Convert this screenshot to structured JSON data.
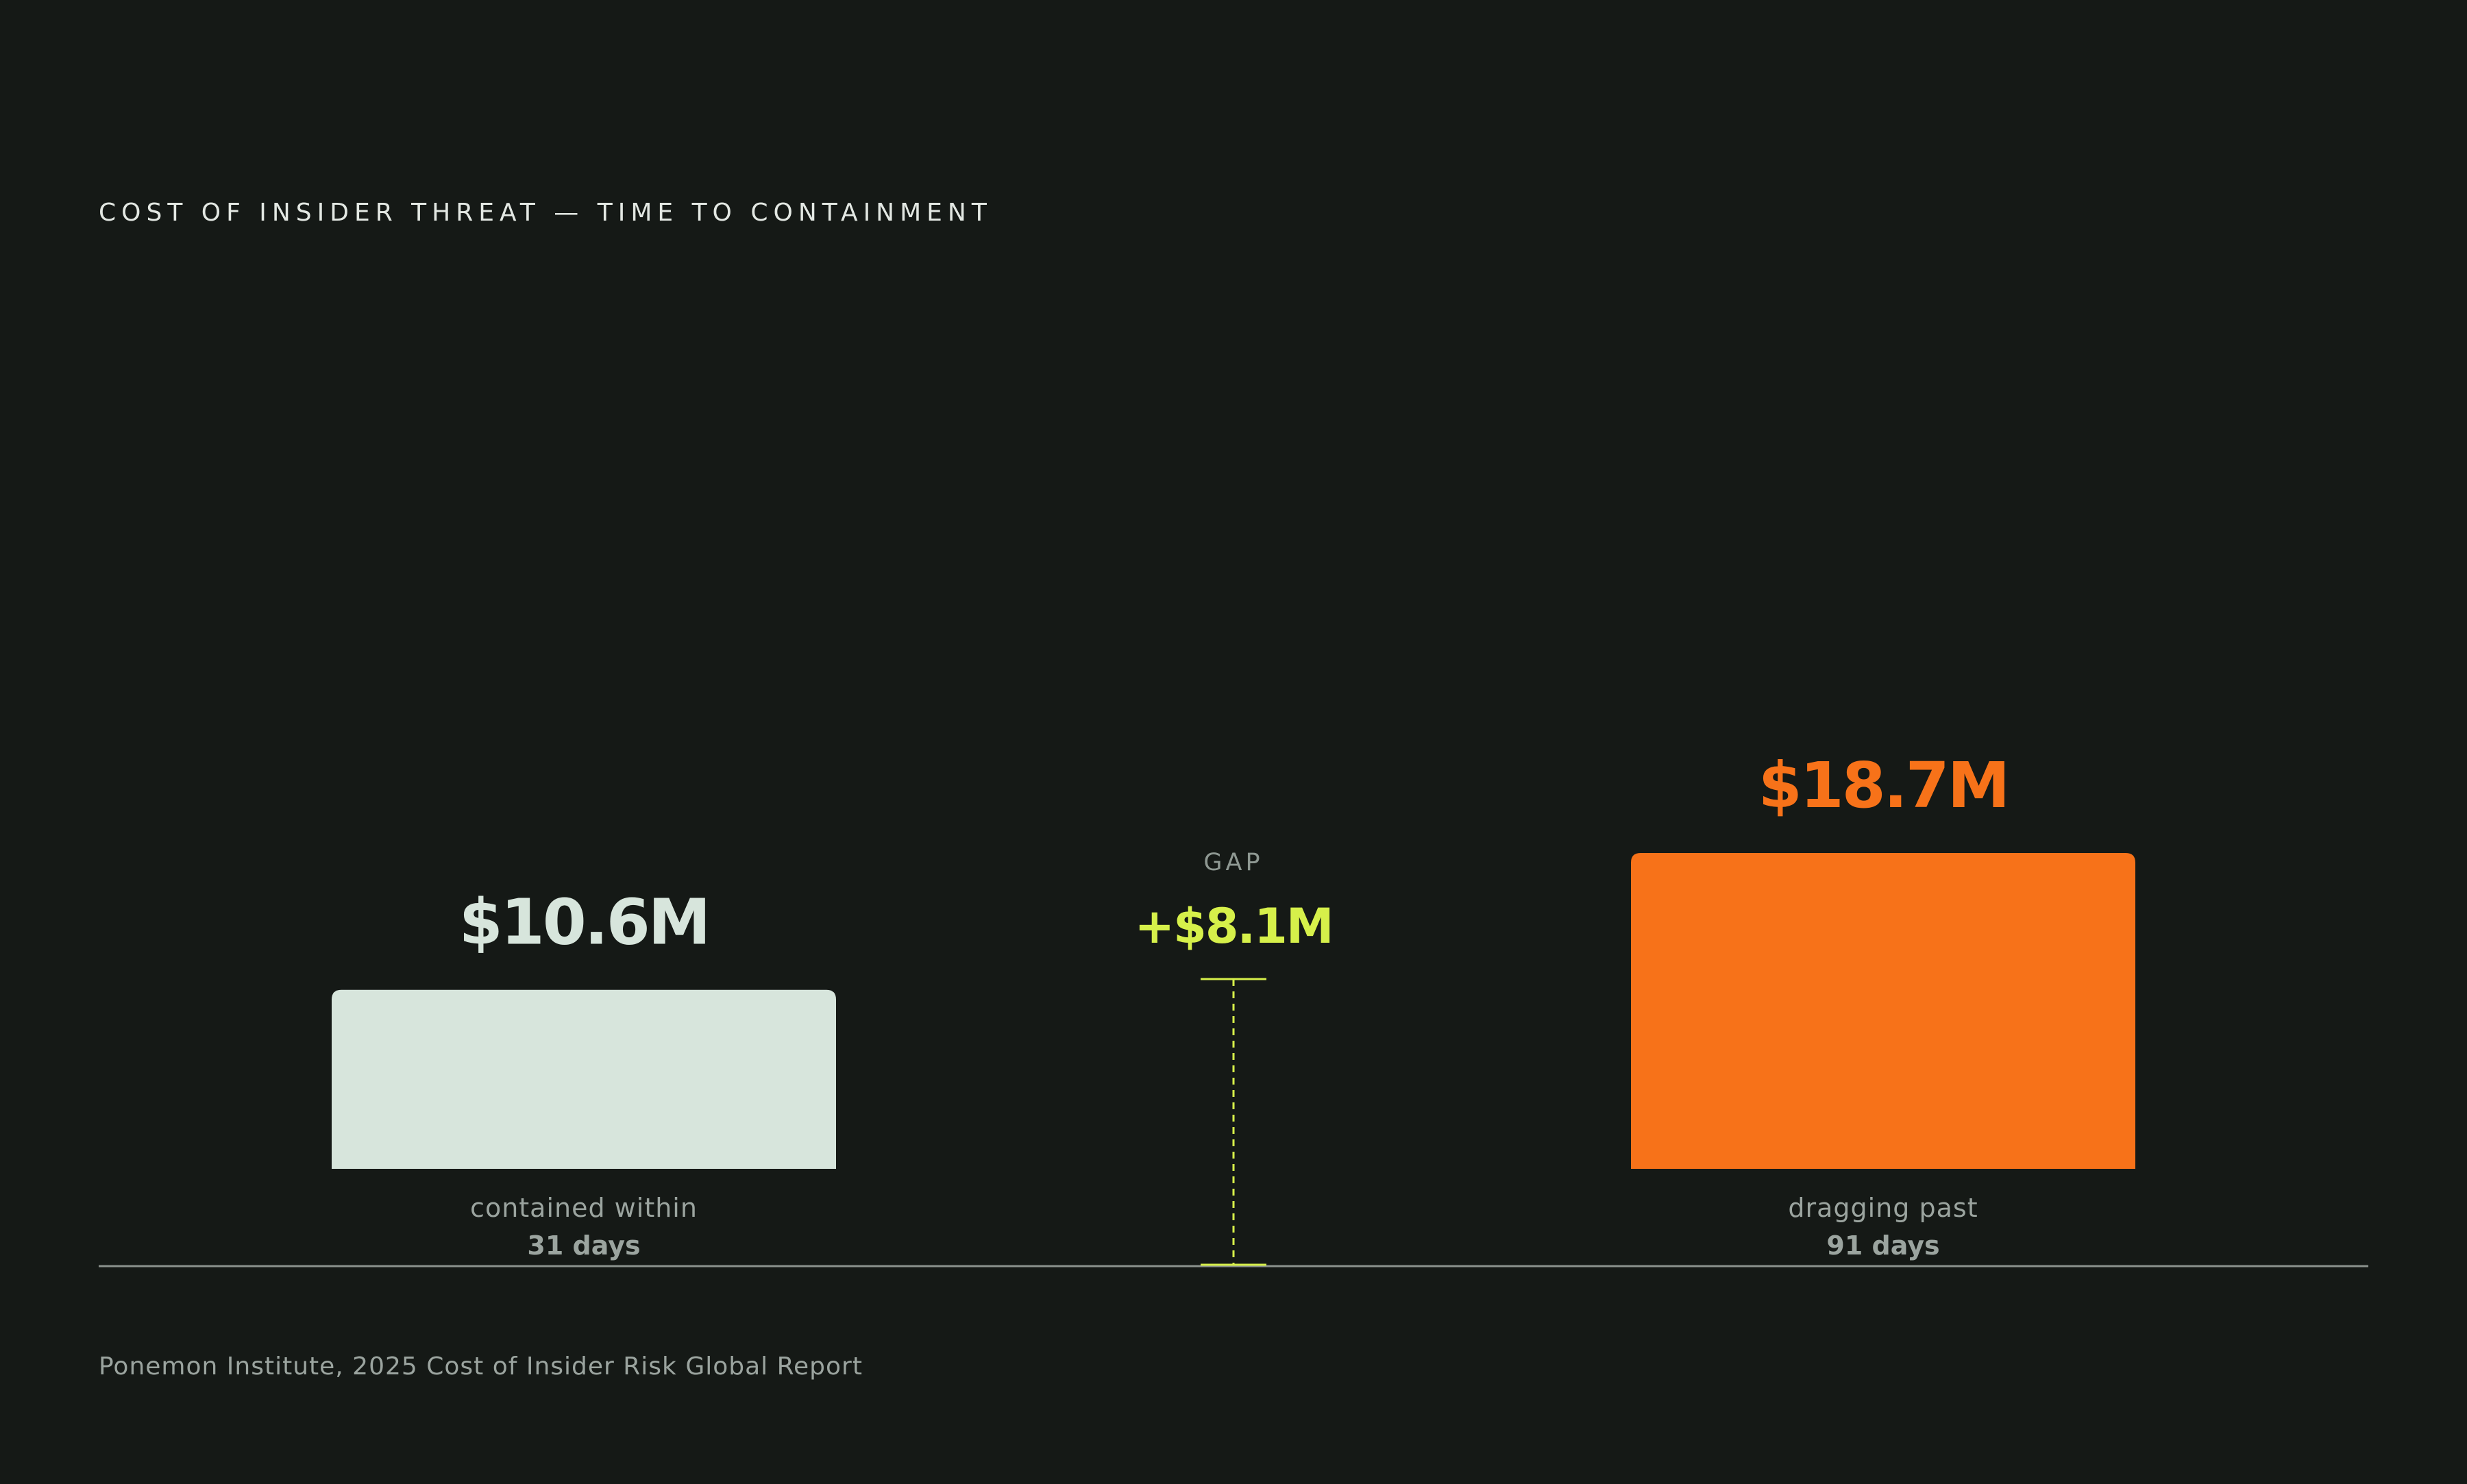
{
  "colors": {
    "background": "#151916",
    "bar_contained": "#d7e5dc",
    "bar_dragging": "#f77219",
    "gap_accent": "#d6f04a",
    "axis": "#8a918c"
  },
  "chart_data": {
    "type": "bar",
    "title": "COST OF INSIDER THREAT — TIME TO CONTAINMENT",
    "unit": "$M",
    "ylim": [
      0,
      20
    ],
    "grid": false,
    "categories": [
      {
        "label": "contained within",
        "sub": "31 days",
        "value": 10.6,
        "value_label": "$10.6M"
      },
      {
        "label": "dragging past",
        "sub": "91 days",
        "value": 18.7,
        "value_label": "$18.7M"
      }
    ],
    "gap": {
      "title": "GAP",
      "value": 8.1,
      "value_label": "+$8.1M"
    },
    "source": "Ponemon Institute, 2025 Cost of Insider Risk Global Report"
  }
}
